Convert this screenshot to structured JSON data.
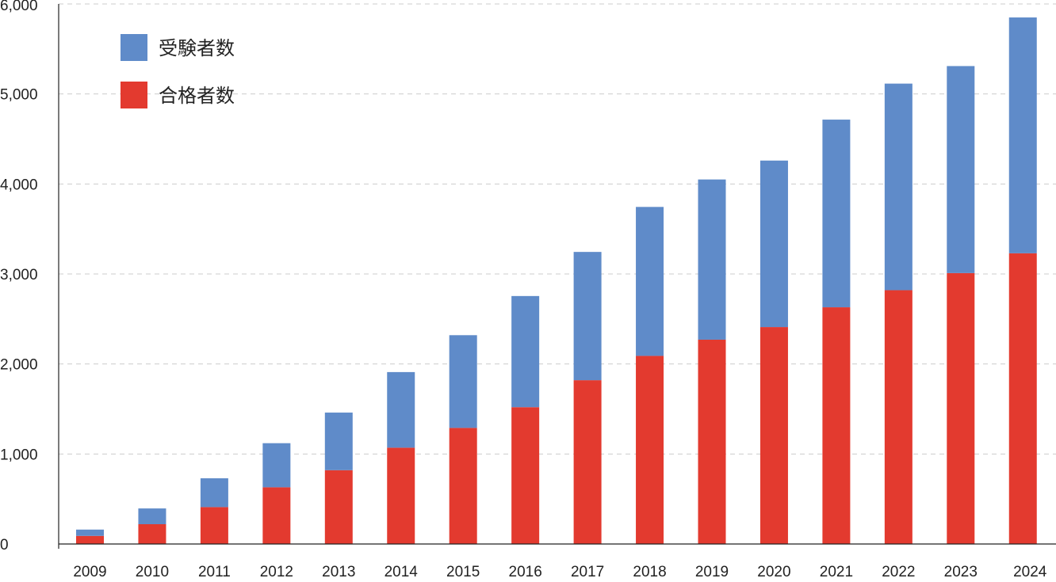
{
  "chart_data": {
    "type": "bar",
    "stacked": true,
    "title": "",
    "xlabel": "",
    "ylabel": "",
    "categories": [
      "2009",
      "2010",
      "2011",
      "2012",
      "2013",
      "2014",
      "2015",
      "2016",
      "2017",
      "2018",
      "2019",
      "2020",
      "2021",
      "2022",
      "2023",
      "2024"
    ],
    "series": [
      {
        "name": "合格者数",
        "color": "#e33a2f",
        "values": [
          90,
          220,
          410,
          630,
          820,
          1070,
          1290,
          1520,
          1820,
          2090,
          2270,
          2410,
          2630,
          2820,
          3010,
          3230
        ]
      },
      {
        "name": "受験者数",
        "color": "#5f8bc9",
        "values": [
          70,
          175,
          320,
          490,
          640,
          840,
          1030,
          1235,
          1425,
          1655,
          1780,
          1850,
          2085,
          2295,
          2300,
          2620
        ]
      }
    ],
    "totals": [
      160,
      395,
      730,
      1120,
      1460,
      1910,
      2320,
      2755,
      3245,
      3745,
      4050,
      4260,
      4715,
      5115,
      5310,
      5850
    ],
    "legend": {
      "placement": "top-left",
      "entries": [
        "受験者数",
        "合格者数"
      ]
    },
    "yaxis": {
      "ylim": [
        0,
        6000
      ],
      "ticks": [
        0,
        1000,
        2000,
        3000,
        4000,
        5000,
        6000
      ],
      "tick_labels": [
        "0",
        "1,000",
        "2,000",
        "3,000",
        "4,000",
        "5,000",
        "6,000"
      ],
      "grid": true,
      "grid_style": "dashed"
    },
    "colors": {
      "grid": "#cccccc",
      "axis": "#222222"
    }
  }
}
